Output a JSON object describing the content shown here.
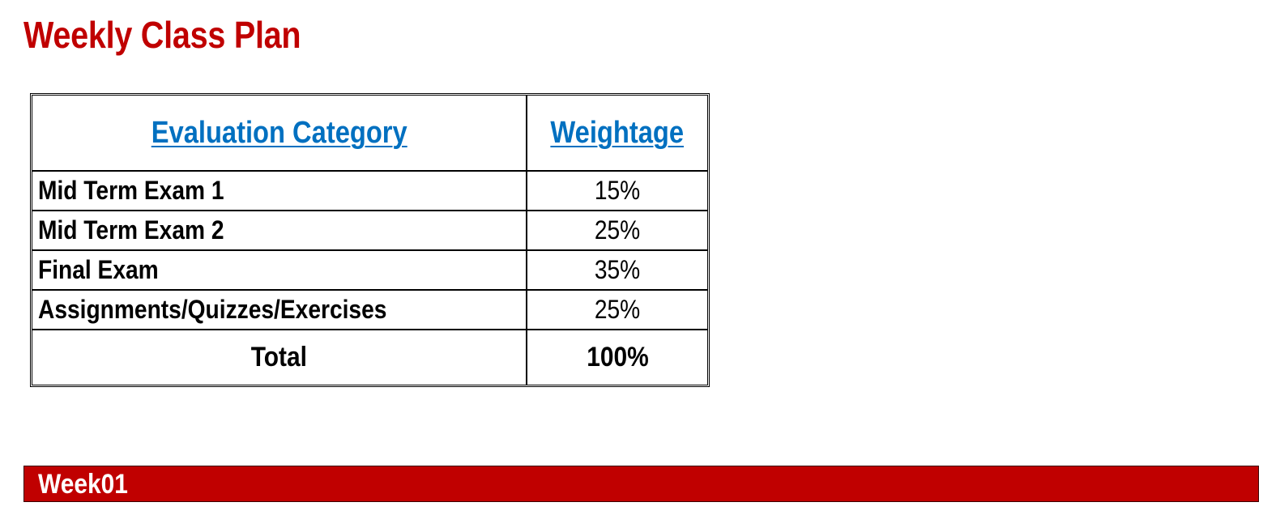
{
  "page": {
    "title": "Weekly Class Plan"
  },
  "evaluation_table": {
    "headers": {
      "category": "Evaluation Category",
      "weightage": "Weightage"
    },
    "rows": [
      {
        "category": "Mid Term Exam 1",
        "weightage": "15%"
      },
      {
        "category": "Mid Term Exam 2",
        "weightage": "25%"
      },
      {
        "category": "Final Exam",
        "weightage": "35%"
      },
      {
        "category": "Assignments/Quizzes/Exercises",
        "weightage": "25%"
      }
    ],
    "total": {
      "label": "Total",
      "value": "100%"
    }
  },
  "week_section": {
    "label": "Week01"
  },
  "colors": {
    "title": "#c00000",
    "header_link": "#0070c0",
    "week_bar": "#c00000",
    "week_text": "#ffffff"
  }
}
